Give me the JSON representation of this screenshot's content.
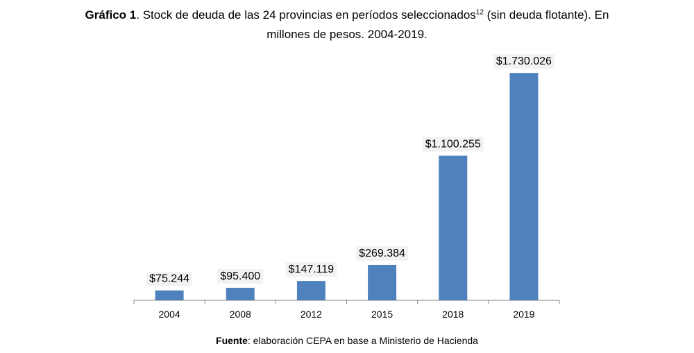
{
  "caption": {
    "label": "Gráfico 1",
    "text": ". Stock de deuda de las 24 provincias en períodos seleccionados",
    "footnote": "12",
    "text_after": " (sin deuda flotante). En millones de pesos. 2004-2019."
  },
  "source": {
    "label": "Fuente",
    "text": ": elaboración CEPA en base a Ministerio de Hacienda"
  },
  "chart_data": {
    "type": "bar",
    "categories": [
      "2004",
      "2008",
      "2012",
      "2015",
      "2018",
      "2019"
    ],
    "values": [
      75244,
      95400,
      147119,
      269384,
      1100255,
      1730026
    ],
    "value_labels": [
      "$75.244",
      "$95.400",
      "$147.119",
      "$269.384",
      "$1.100.255",
      "$1.730.026"
    ],
    "ylim": [
      0,
      1900000
    ],
    "grid": false,
    "legend": "none",
    "bar_color": "#4f81bd"
  }
}
